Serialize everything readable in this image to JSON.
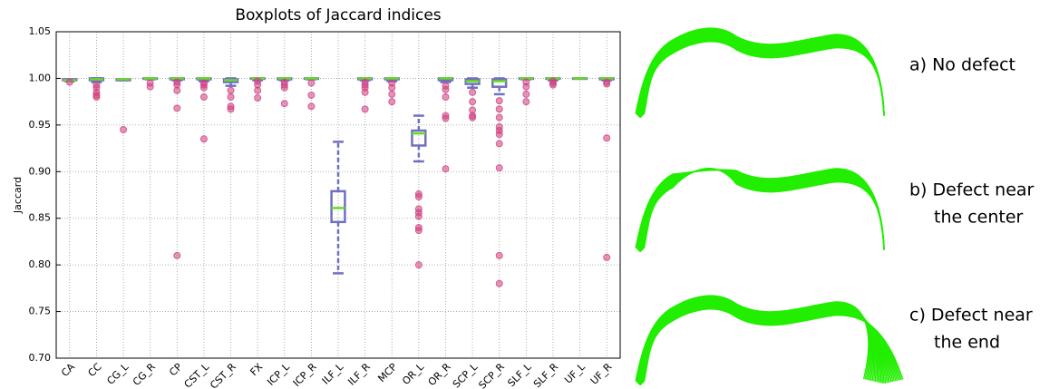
{
  "chart_data": {
    "type": "box",
    "title": "Boxplots of Jaccard indices",
    "y_label": "Jaccard",
    "categories": [
      "CA",
      "CC",
      "CG_L",
      "CG_R",
      "CP",
      "CST_L",
      "CST_R",
      "FX",
      "ICP_L",
      "ICP_R",
      "ILF_L",
      "ILF_R",
      "MCP",
      "OR_L",
      "OR_R",
      "SCP_L",
      "SCP_R",
      "SLF_L",
      "SLF_R",
      "UF_L",
      "UF_R"
    ],
    "whislo": [
      0.997,
      0.996,
      0.998,
      0.999,
      0.998,
      0.997,
      0.992,
      0.998,
      0.998,
      0.999,
      0.791,
      0.998,
      0.997,
      0.911,
      0.996,
      0.99,
      0.983,
      0.999,
      0.998,
      1.0,
      0.998
    ],
    "q1": [
      0.998,
      0.998,
      0.998,
      1.0,
      0.999,
      0.999,
      0.996,
      1.0,
      0.999,
      1.0,
      0.846,
      0.999,
      0.999,
      0.928,
      0.998,
      0.994,
      0.991,
      1.0,
      1.0,
      1.0,
      0.999
    ],
    "median": [
      0.998,
      0.999,
      0.999,
      1.0,
      1.0,
      1.0,
      0.998,
      1.0,
      1.0,
      1.0,
      0.861,
      1.0,
      1.0,
      0.941,
      1.0,
      0.997,
      0.997,
      1.0,
      1.0,
      1.0,
      1.0
    ],
    "q3": [
      0.999,
      1.0,
      0.999,
      1.0,
      1.0,
      1.0,
      0.999,
      1.0,
      1.0,
      1.0,
      0.879,
      1.0,
      1.0,
      0.944,
      1.0,
      0.999,
      0.999,
      1.0,
      1.0,
      1.0,
      1.0
    ],
    "whishi": [
      0.999,
      1.0,
      0.999,
      1.0,
      1.0,
      1.0,
      1.0,
      1.0,
      1.0,
      1.0,
      0.932,
      1.0,
      1.0,
      0.96,
      1.0,
      1.0,
      1.0,
      1.0,
      1.0,
      1.0,
      1.0
    ],
    "fliers": [
      [
        0.996
      ],
      [
        0.993,
        0.99,
        0.985,
        0.982,
        0.98
      ],
      [
        0.945
      ],
      [
        0.995,
        0.991
      ],
      [
        0.996,
        0.993,
        0.987,
        0.968,
        0.81
      ],
      [
        0.995,
        0.993,
        0.99,
        0.98,
        0.935
      ],
      [
        0.987,
        0.98,
        0.97,
        0.967
      ],
      [
        0.997,
        0.993,
        0.987,
        0.979
      ],
      [
        0.996,
        0.993,
        0.99,
        0.973
      ],
      [
        0.995,
        0.982,
        0.97
      ],
      [],
      [
        0.996,
        0.993,
        0.99,
        0.985,
        0.967
      ],
      [
        0.995,
        0.99,
        0.983,
        0.975
      ],
      [
        0.876,
        0.873,
        0.86,
        0.856,
        0.852,
        0.84,
        0.837,
        0.8
      ],
      [
        0.992,
        0.988,
        0.98,
        0.96,
        0.957,
        0.903
      ],
      [
        0.985,
        0.975,
        0.966,
        0.96,
        0.958
      ],
      [
        0.976,
        0.967,
        0.958,
        0.948,
        0.944,
        0.94,
        0.93,
        0.904,
        0.81,
        0.78
      ],
      [
        0.996,
        0.991,
        0.983,
        0.975
      ],
      [
        0.997,
        0.995,
        0.993
      ],
      [],
      [
        0.996,
        0.994,
        0.936,
        0.808
      ]
    ],
    "box_color": "#7070c0",
    "median_color": "#66dd22",
    "flier_color": "#d04080",
    "ylim": [
      0.7,
      1.05
    ],
    "yticks": [
      {
        "value": 0.7,
        "label": "0.70"
      },
      0.75,
      {
        "value": 0.8,
        "label": "0.80"
      },
      0.85,
      {
        "value": 0.9,
        "label": "0.90"
      },
      0.95,
      {
        "value": 1.0,
        "label": "1.00"
      },
      1.05
    ],
    "grid": true
  },
  "panels": [
    {
      "label": [
        "a) No defect"
      ]
    },
    {
      "label": [
        "b) Defect near",
        "the center"
      ]
    },
    {
      "label": [
        "c) Defect near",
        "the end"
      ]
    }
  ]
}
